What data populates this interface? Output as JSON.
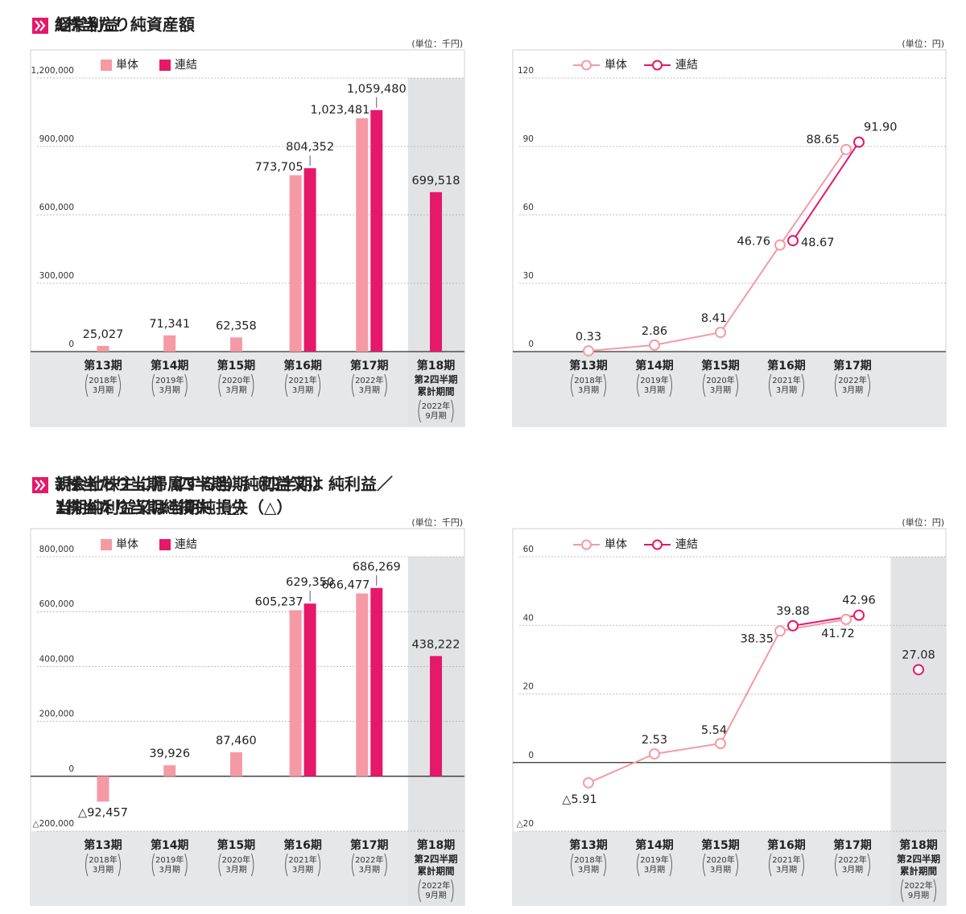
{
  "chart_data": [
    {
      "type": "bar",
      "title": [
        "経常利益"
      ],
      "unit": "(単位：千円)",
      "categories": [
        "第13期",
        "第14期",
        "第15期",
        "第16期",
        "第17期",
        "第18期"
      ],
      "periods": [
        [
          "2018年",
          "3月期"
        ],
        [
          "2019年",
          "3月期"
        ],
        [
          "2020年",
          "3月期"
        ],
        [
          "2021年",
          "3月期"
        ],
        [
          "2022年",
          "3月期"
        ],
        [
          "2022年",
          "9月期"
        ]
      ],
      "shaded_index": 5,
      "shaded_notes": [
        "第2四半期",
        "累計期間"
      ],
      "series": [
        {
          "name": "単体",
          "color": "#f59aa4",
          "values": [
            25027,
            71341,
            62358,
            773705,
            1023481,
            null
          ],
          "value_labels": [
            "25,027",
            "71,341",
            "62,358",
            "773,705",
            "1,023,481",
            null
          ]
        },
        {
          "name": "連結",
          "color": "#e5186a",
          "values": [
            null,
            null,
            null,
            804352,
            1059480,
            699518
          ],
          "value_labels": [
            null,
            null,
            null,
            "804,352",
            "1,059,480",
            "699,518"
          ]
        }
      ],
      "ylim": [
        0,
        1200000
      ],
      "yticks": [
        0,
        {
          "value": 300000,
          "label": "300,000"
        },
        {
          "value": 600000,
          "label": "600,000"
        },
        {
          "value": 900000,
          "label": "900,000"
        },
        {
          "value": 1200000,
          "label": "1,200,000"
        }
      ],
      "grid": true
    },
    {
      "type": "line",
      "title": [
        "1株当たり純資産額"
      ],
      "unit": "(単位：円)",
      "categories": [
        "第13期",
        "第14期",
        "第15期",
        "第16期",
        "第17期"
      ],
      "periods": [
        [
          "2018年",
          "3月期"
        ],
        [
          "2019年",
          "3月期"
        ],
        [
          "2020年",
          "3月期"
        ],
        [
          "2021年",
          "3月期"
        ],
        [
          "2022年",
          "3月期"
        ]
      ],
      "series": [
        {
          "name": "単体",
          "color": "#f59aa4",
          "values": [
            0.33,
            2.86,
            8.41,
            46.76,
            88.65
          ],
          "value_labels": [
            "0.33",
            "2.86",
            "8.41",
            "46.76",
            "88.65"
          ]
        },
        {
          "name": "連結",
          "color": "#e5186a",
          "values": [
            null,
            null,
            null,
            48.67,
            91.9
          ],
          "value_labels": [
            null,
            null,
            null,
            "48.67",
            "91.90"
          ]
        }
      ],
      "ylim": [
        0,
        120
      ],
      "yticks": [
        0,
        30,
        60,
        90,
        120
      ],
      "grid": true
    },
    {
      "type": "bar",
      "title": [
        "親会社株主に帰属する当期（四半期）純利益／",
        "当期純利益又は当期純損失（△）"
      ],
      "unit": "(単位：千円)",
      "categories": [
        "第13期",
        "第14期",
        "第15期",
        "第16期",
        "第17期",
        "第18期"
      ],
      "periods": [
        [
          "2018年",
          "3月期"
        ],
        [
          "2019年",
          "3月期"
        ],
        [
          "2020年",
          "3月期"
        ],
        [
          "2021年",
          "3月期"
        ],
        [
          "2022年",
          "3月期"
        ],
        [
          "2022年",
          "9月期"
        ]
      ],
      "shaded_index": 5,
      "shaded_notes": [
        "第2四半期",
        "累計期間"
      ],
      "series": [
        {
          "name": "単体",
          "color": "#f59aa4",
          "values": [
            -92457,
            39926,
            87460,
            605237,
            666477,
            null
          ],
          "value_labels": [
            "△92,457",
            "39,926",
            "87,460",
            "605,237",
            "666,477",
            null
          ]
        },
        {
          "name": "連結",
          "color": "#e5186a",
          "values": [
            null,
            null,
            null,
            629350,
            686269,
            438222
          ],
          "value_labels": [
            null,
            null,
            null,
            "629,350",
            "686,269",
            "438,222"
          ]
        }
      ],
      "ylim": [
        -200000,
        800000
      ],
      "yticks": [
        {
          "value": -200000,
          "label": "△200,000"
        },
        0,
        {
          "value": 200000,
          "label": "200,000"
        },
        {
          "value": 400000,
          "label": "400,000"
        },
        {
          "value": 600000,
          "label": "600,000"
        },
        {
          "value": 800000,
          "label": "800,000"
        }
      ],
      "grid": true
    },
    {
      "type": "line",
      "title": [
        "1株当たり当期（四半期）純利益又は",
        "1株当たり当期純損失（△）"
      ],
      "unit": "(単位：円)",
      "categories": [
        "第13期",
        "第14期",
        "第15期",
        "第16期",
        "第17期",
        "第18期"
      ],
      "periods": [
        [
          "2018年",
          "3月期"
        ],
        [
          "2019年",
          "3月期"
        ],
        [
          "2020年",
          "3月期"
        ],
        [
          "2021年",
          "3月期"
        ],
        [
          "2022年",
          "3月期"
        ],
        [
          "2022年",
          "9月期"
        ]
      ],
      "shaded_index": 5,
      "shaded_notes": [
        "第2四半期",
        "累計期間"
      ],
      "series": [
        {
          "name": "単体",
          "color": "#f59aa4",
          "values": [
            -5.91,
            2.53,
            5.54,
            38.35,
            41.72,
            null
          ],
          "value_labels": [
            "△5.91",
            "2.53",
            "5.54",
            "38.35",
            "41.72",
            null
          ]
        },
        {
          "name": "連結",
          "color": "#e5186a",
          "values": [
            null,
            null,
            null,
            39.88,
            42.96,
            27.08
          ],
          "value_labels": [
            null,
            null,
            null,
            "39.88",
            "42.96",
            "27.08"
          ]
        }
      ],
      "ylim": [
        -20,
        60
      ],
      "yticks": [
        {
          "value": -20,
          "label": "△20"
        },
        0,
        20,
        40,
        60
      ],
      "grid": true
    }
  ]
}
